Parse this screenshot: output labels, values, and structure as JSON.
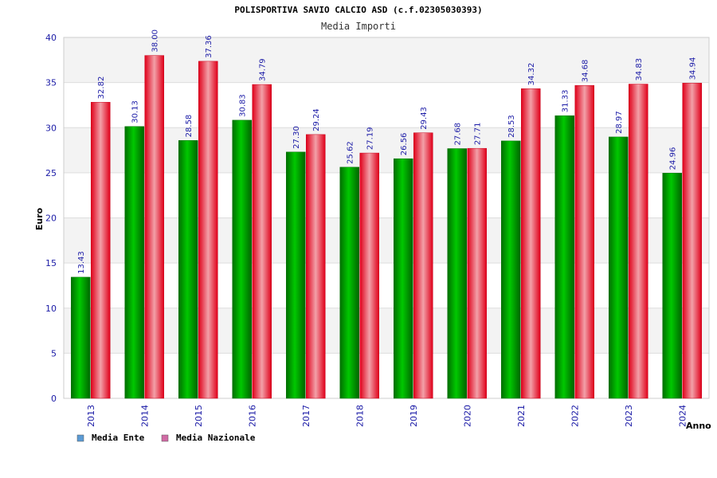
{
  "chart_data": {
    "type": "bar",
    "title": "POLISPORTIVA SAVIO CALCIO ASD (c.f.02305030393)",
    "subtitle": "Media Importi",
    "xlabel": "Anno",
    "ylabel": "Euro",
    "ylim": [
      0,
      40
    ],
    "yticks": [
      0,
      5,
      10,
      15,
      20,
      25,
      30,
      35,
      40
    ],
    "grid": true,
    "legend_position": "bottom-left",
    "categories": [
      "2013",
      "2014",
      "2015",
      "2016",
      "2017",
      "2018",
      "2019",
      "2020",
      "2021",
      "2022",
      "2023",
      "2024"
    ],
    "series": [
      {
        "name": "Media Ente",
        "color": "#00a000",
        "legend_color": "#5b9bd5",
        "values": [
          13.43,
          30.13,
          28.58,
          30.83,
          27.3,
          25.62,
          26.56,
          27.68,
          28.53,
          31.33,
          28.97,
          24.96
        ],
        "labels": [
          "13.43",
          "30.13",
          "28.58",
          "30.83",
          "27.30",
          "25.62",
          "26.56",
          "27.68",
          "28.53",
          "31.33",
          "28.97",
          "24.96"
        ]
      },
      {
        "name": "Media Nazionale",
        "color": "#e8101e",
        "legend_color": "#d16ba5",
        "values": [
          32.82,
          38.0,
          37.36,
          34.79,
          29.24,
          27.19,
          29.43,
          27.71,
          34.32,
          34.68,
          34.83,
          34.94
        ],
        "labels": [
          "32.82",
          "38.00",
          "37.36",
          "34.79",
          "29.24",
          "27.19",
          "29.43",
          "27.71",
          "34.32",
          "34.68",
          "34.83",
          "34.94"
        ]
      }
    ]
  }
}
